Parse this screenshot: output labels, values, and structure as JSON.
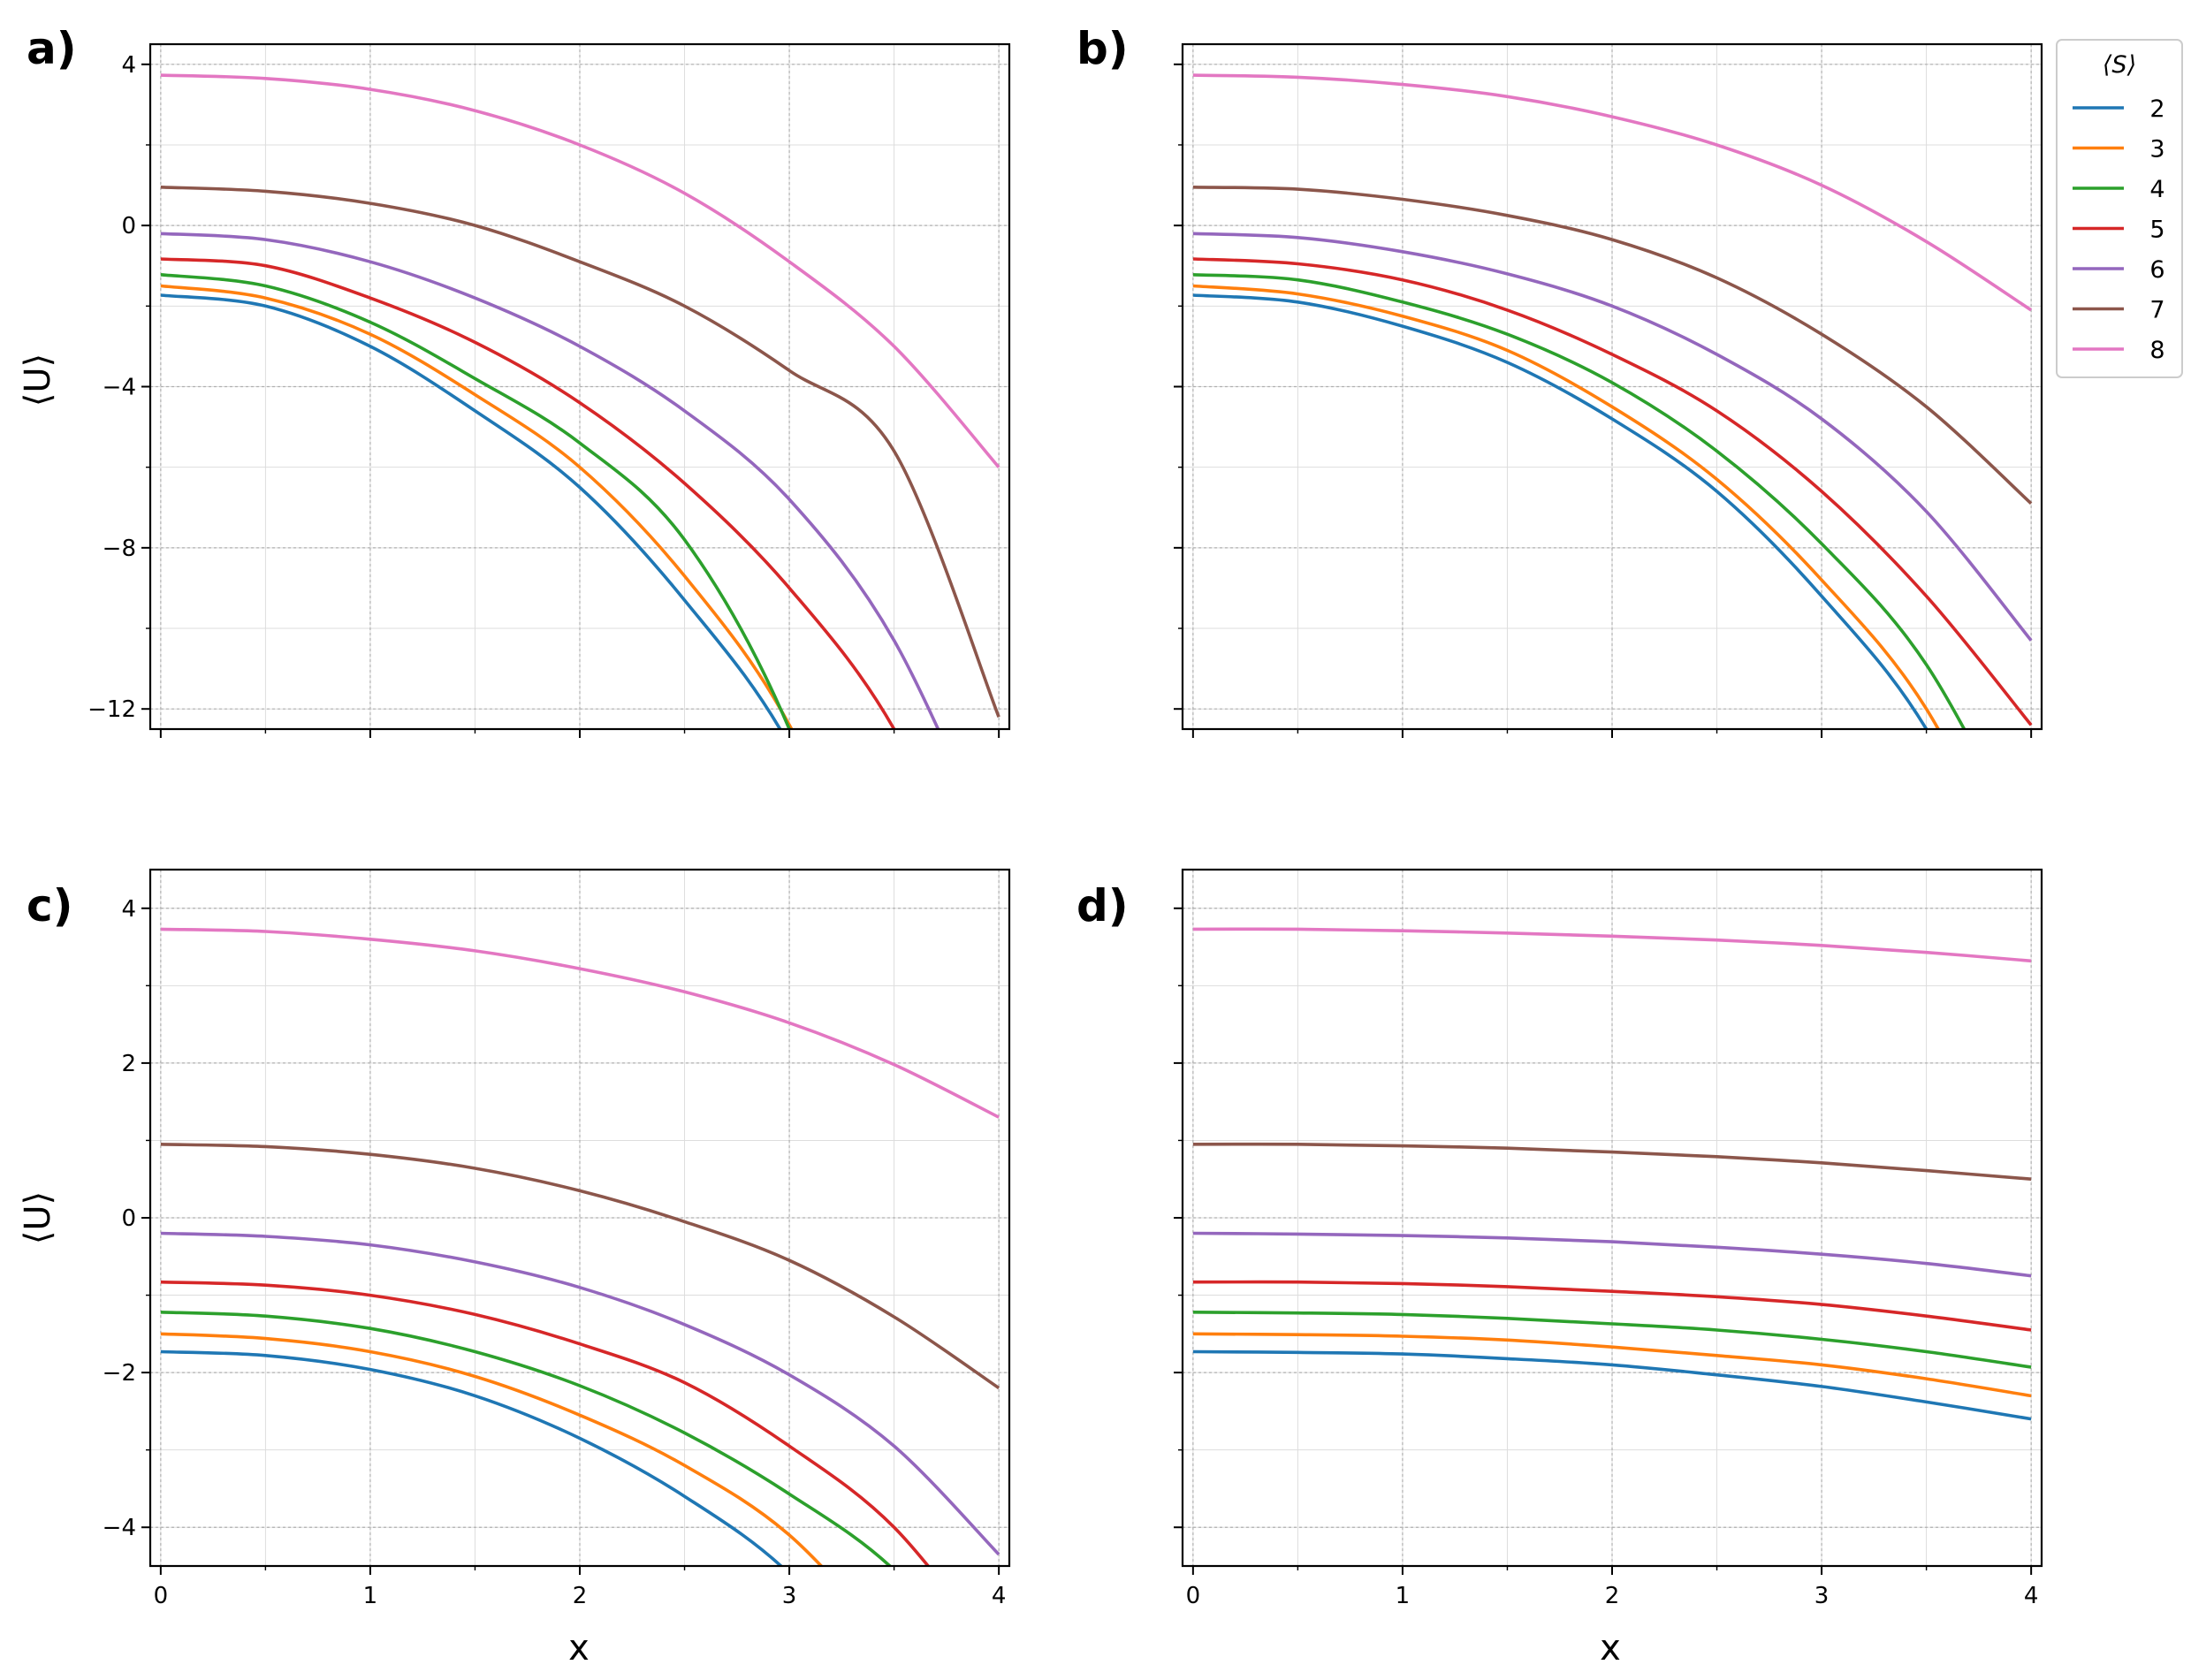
{
  "chart_data": [
    {
      "panel": "a)",
      "type": "line",
      "xlabel": "",
      "ylabel": "⟨U⟩",
      "xlim": [
        -0.05,
        4.05
      ],
      "ylim": [
        -12.5,
        4.5
      ],
      "xticks": [
        0,
        1,
        2,
        3,
        4
      ],
      "xticklabels_visible": false,
      "yticks": [
        4,
        0,
        -4,
        -8,
        -12
      ],
      "ytick_labels": [
        "4",
        "0",
        "−4",
        "−8",
        "−12"
      ],
      "grid": true,
      "x": [
        0,
        0.5,
        1,
        1.5,
        2,
        2.5,
        3,
        3.5,
        4
      ],
      "series": [
        {
          "name": "2",
          "color": "#1f77b4",
          "values": [
            -1.73,
            -2.0,
            -3.0,
            -4.6,
            -6.5,
            -9.3,
            -12.9,
            null,
            null
          ]
        },
        {
          "name": "3",
          "color": "#ff7f0e",
          "values": [
            -1.5,
            -1.8,
            -2.7,
            -4.2,
            -6.0,
            -8.7,
            -12.4,
            null,
            null
          ]
        },
        {
          "name": "4",
          "color": "#2ca02c",
          "values": [
            -1.22,
            -1.5,
            -2.4,
            -3.8,
            -5.4,
            -7.8,
            -12.5,
            null,
            null
          ]
        },
        {
          "name": "5",
          "color": "#d62728",
          "values": [
            -0.83,
            -1.0,
            -1.8,
            -2.9,
            -4.4,
            -6.4,
            -9.0,
            -12.5,
            null
          ]
        },
        {
          "name": "6",
          "color": "#9467bd",
          "values": [
            -0.2,
            -0.35,
            -0.9,
            -1.8,
            -3.0,
            -4.6,
            -6.8,
            -10.3,
            null
          ]
        },
        {
          "name": "7",
          "color": "#8c564b",
          "values": [
            0.95,
            0.85,
            0.55,
            0.0,
            -0.9,
            -2.0,
            -3.6,
            -5.6,
            -12.2
          ]
        },
        {
          "name": "8",
          "color": "#e377c2",
          "values": [
            3.73,
            3.65,
            3.38,
            2.85,
            2.0,
            0.8,
            -0.9,
            -3.0,
            -6.0
          ]
        }
      ]
    },
    {
      "panel": "b)",
      "type": "line",
      "xlabel": "",
      "ylabel": "",
      "xlim": [
        -0.05,
        4.05
      ],
      "ylim": [
        -12.5,
        4.5
      ],
      "xticks": [
        0,
        1,
        2,
        3,
        4
      ],
      "xticklabels_visible": false,
      "yticks": [
        4,
        0,
        -4,
        -8,
        -12
      ],
      "yticklabels_visible": false,
      "grid": true,
      "x": [
        0,
        0.5,
        1,
        1.5,
        2,
        2.5,
        3,
        3.5,
        4
      ],
      "series": [
        {
          "name": "2",
          "color": "#1f77b4",
          "values": [
            -1.73,
            -1.9,
            -2.5,
            -3.4,
            -4.8,
            -6.6,
            -9.2,
            -12.5,
            null
          ]
        },
        {
          "name": "3",
          "color": "#ff7f0e",
          "values": [
            -1.5,
            -1.7,
            -2.25,
            -3.1,
            -4.5,
            -6.3,
            -8.8,
            -12.0,
            null
          ]
        },
        {
          "name": "4",
          "color": "#2ca02c",
          "values": [
            -1.22,
            -1.35,
            -1.9,
            -2.7,
            -3.9,
            -5.6,
            -7.9,
            -10.9,
            null
          ]
        },
        {
          "name": "5",
          "color": "#d62728",
          "values": [
            -0.83,
            -0.95,
            -1.35,
            -2.1,
            -3.2,
            -4.6,
            -6.6,
            -9.2,
            -12.4
          ]
        },
        {
          "name": "6",
          "color": "#9467bd",
          "values": [
            -0.2,
            -0.3,
            -0.65,
            -1.2,
            -2.0,
            -3.2,
            -4.8,
            -7.1,
            -10.3
          ]
        },
        {
          "name": "7",
          "color": "#8c564b",
          "values": [
            0.95,
            0.9,
            0.65,
            0.25,
            -0.35,
            -1.3,
            -2.7,
            -4.5,
            -6.9
          ]
        },
        {
          "name": "8",
          "color": "#e377c2",
          "values": [
            3.73,
            3.68,
            3.5,
            3.2,
            2.7,
            2.0,
            1.0,
            -0.4,
            -2.1
          ]
        }
      ]
    },
    {
      "panel": "c)",
      "type": "line",
      "xlabel": "x",
      "ylabel": "⟨U⟩",
      "xlim": [
        -0.05,
        4.05
      ],
      "ylim": [
        -4.5,
        4.5
      ],
      "xticks": [
        0,
        1,
        2,
        3,
        4
      ],
      "xtick_labels": [
        "0",
        "1",
        "2",
        "3",
        "4"
      ],
      "yticks": [
        4,
        2,
        0,
        -2,
        -4
      ],
      "ytick_labels": [
        "4",
        "2",
        "0",
        "−2",
        "−4"
      ],
      "grid": true,
      "x": [
        0,
        0.5,
        1,
        1.5,
        2,
        2.5,
        3,
        3.5,
        4
      ],
      "series": [
        {
          "name": "2",
          "color": "#1f77b4",
          "values": [
            -1.73,
            -1.78,
            -1.96,
            -2.3,
            -2.85,
            -3.6,
            -4.6,
            null,
            null
          ]
        },
        {
          "name": "3",
          "color": "#ff7f0e",
          "values": [
            -1.5,
            -1.56,
            -1.73,
            -2.05,
            -2.55,
            -3.2,
            -4.1,
            null,
            null
          ]
        },
        {
          "name": "4",
          "color": "#2ca02c",
          "values": [
            -1.22,
            -1.27,
            -1.43,
            -1.73,
            -2.17,
            -2.78,
            -3.57,
            -4.55,
            null
          ]
        },
        {
          "name": "5",
          "color": "#d62728",
          "values": [
            -0.83,
            -0.87,
            -1.0,
            -1.25,
            -1.63,
            -2.13,
            -2.95,
            -4.0,
            null
          ]
        },
        {
          "name": "6",
          "color": "#9467bd",
          "values": [
            -0.2,
            -0.24,
            -0.35,
            -0.57,
            -0.9,
            -1.38,
            -2.03,
            -2.95,
            -4.35
          ]
        },
        {
          "name": "7",
          "color": "#8c564b",
          "values": [
            0.95,
            0.92,
            0.82,
            0.64,
            0.35,
            -0.05,
            -0.55,
            -1.28,
            -2.2
          ]
        },
        {
          "name": "8",
          "color": "#e377c2",
          "values": [
            3.73,
            3.7,
            3.6,
            3.45,
            3.22,
            2.92,
            2.52,
            1.98,
            1.3
          ]
        }
      ]
    },
    {
      "panel": "d)",
      "type": "line",
      "xlabel": "x",
      "ylabel": "",
      "xlim": [
        -0.05,
        4.05
      ],
      "ylim": [
        -4.5,
        4.5
      ],
      "xticks": [
        0,
        1,
        2,
        3,
        4
      ],
      "xtick_labels": [
        "0",
        "1",
        "2",
        "3",
        "4"
      ],
      "yticks": [
        4,
        2,
        0,
        -2,
        -4
      ],
      "yticklabels_visible": false,
      "grid": true,
      "x": [
        0,
        0.5,
        1,
        1.5,
        2,
        2.5,
        3,
        3.5,
        4
      ],
      "series": [
        {
          "name": "2",
          "color": "#1f77b4",
          "values": [
            -1.73,
            -1.74,
            -1.76,
            -1.82,
            -1.9,
            -2.03,
            -2.18,
            -2.38,
            -2.6
          ]
        },
        {
          "name": "3",
          "color": "#ff7f0e",
          "values": [
            -1.5,
            -1.51,
            -1.53,
            -1.58,
            -1.67,
            -1.78,
            -1.9,
            -2.08,
            -2.3
          ]
        },
        {
          "name": "4",
          "color": "#2ca02c",
          "values": [
            -1.22,
            -1.23,
            -1.25,
            -1.3,
            -1.37,
            -1.45,
            -1.57,
            -1.73,
            -1.93
          ]
        },
        {
          "name": "5",
          "color": "#d62728",
          "values": [
            -0.83,
            -0.83,
            -0.85,
            -0.89,
            -0.95,
            -1.02,
            -1.12,
            -1.27,
            -1.45
          ]
        },
        {
          "name": "6",
          "color": "#9467bd",
          "values": [
            -0.2,
            -0.21,
            -0.23,
            -0.26,
            -0.31,
            -0.38,
            -0.47,
            -0.59,
            -0.75
          ]
        },
        {
          "name": "7",
          "color": "#8c564b",
          "values": [
            0.95,
            0.95,
            0.93,
            0.9,
            0.85,
            0.79,
            0.71,
            0.61,
            0.5
          ]
        },
        {
          "name": "8",
          "color": "#e377c2",
          "values": [
            3.73,
            3.73,
            3.71,
            3.68,
            3.64,
            3.59,
            3.52,
            3.43,
            3.32
          ]
        }
      ]
    }
  ],
  "legend": {
    "title": "⟨S⟩",
    "location": "right of panel b",
    "entries": [
      {
        "label": "2",
        "color": "#1f77b4"
      },
      {
        "label": "3",
        "color": "#ff7f0e"
      },
      {
        "label": "4",
        "color": "#2ca02c"
      },
      {
        "label": "5",
        "color": "#d62728"
      },
      {
        "label": "6",
        "color": "#9467bd"
      },
      {
        "label": "7",
        "color": "#8c564b"
      },
      {
        "label": "8",
        "color": "#e377c2"
      }
    ]
  }
}
